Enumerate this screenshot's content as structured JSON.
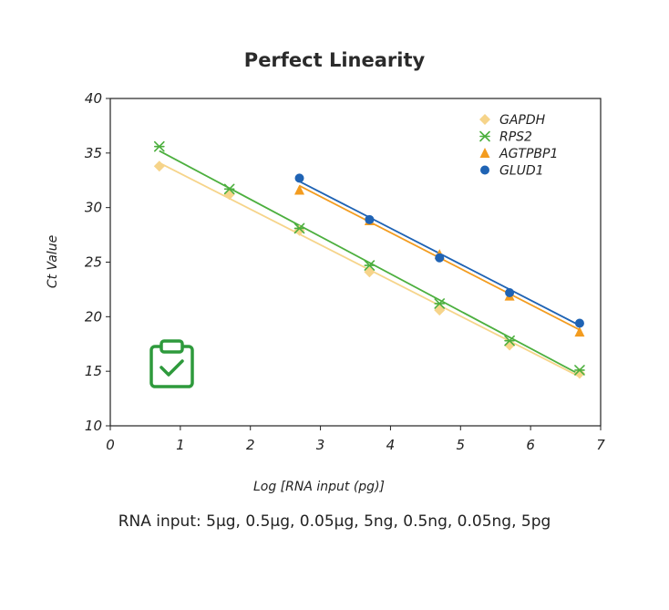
{
  "chart_data": {
    "type": "scatter",
    "title": "Perfect Linearity",
    "xlabel": "Log [RNA input (pg)]",
    "ylabel": "Ct  Value",
    "xlim": [
      0,
      7
    ],
    "ylim": [
      10,
      40
    ],
    "xticks": [
      "0",
      "1",
      "2",
      "3",
      "4",
      "5",
      "6",
      "7"
    ],
    "yticks": [
      "10",
      "15",
      "20",
      "25",
      "30",
      "35",
      "40"
    ],
    "grid": false,
    "legend": "top-right",
    "series": [
      {
        "name": "GAPDH",
        "marker": "diamond",
        "color": "#f6d48a",
        "x": [
          0.7,
          1.7,
          2.7,
          3.7,
          4.7,
          5.7,
          6.7
        ],
        "y": [
          33.8,
          31.2,
          27.9,
          24.1,
          20.6,
          17.4,
          14.8
        ],
        "fit": [
          [
            0.7,
            34.1
          ],
          [
            6.7,
            14.5
          ]
        ]
      },
      {
        "name": "RPS2",
        "marker": "asterisk",
        "color": "#4caf3e",
        "x": [
          0.7,
          1.7,
          2.7,
          3.7,
          4.7,
          5.7,
          6.7
        ],
        "y": [
          35.6,
          31.7,
          28.1,
          24.7,
          21.2,
          17.8,
          15.1
        ],
        "fit": [
          [
            0.7,
            35.2
          ],
          [
            6.7,
            14.7
          ]
        ]
      },
      {
        "name": "AGTPBP1",
        "marker": "triangle",
        "color": "#f39c1f",
        "x": [
          2.7,
          3.7,
          4.7,
          5.7,
          6.7
        ],
        "y": [
          31.6,
          28.8,
          25.7,
          21.9,
          18.6
        ],
        "fit": [
          [
            2.7,
            32.0
          ],
          [
            6.7,
            18.8
          ]
        ]
      },
      {
        "name": "GLUD1",
        "marker": "circle",
        "color": "#1f63b4",
        "x": [
          2.7,
          3.7,
          4.7,
          5.7,
          6.7
        ],
        "y": [
          32.7,
          28.9,
          25.4,
          22.2,
          19.4
        ],
        "fit": [
          [
            2.7,
            32.4
          ],
          [
            6.7,
            19.2
          ]
        ]
      }
    ]
  },
  "footnote": "RNA input:  5μg, 0.5μg, 0.05μg, 5ng, 0.5ng, 0.05ng, 5pg",
  "icons": {
    "badge": "clipboard-check-icon",
    "badge_color": "#2e9a3c"
  }
}
